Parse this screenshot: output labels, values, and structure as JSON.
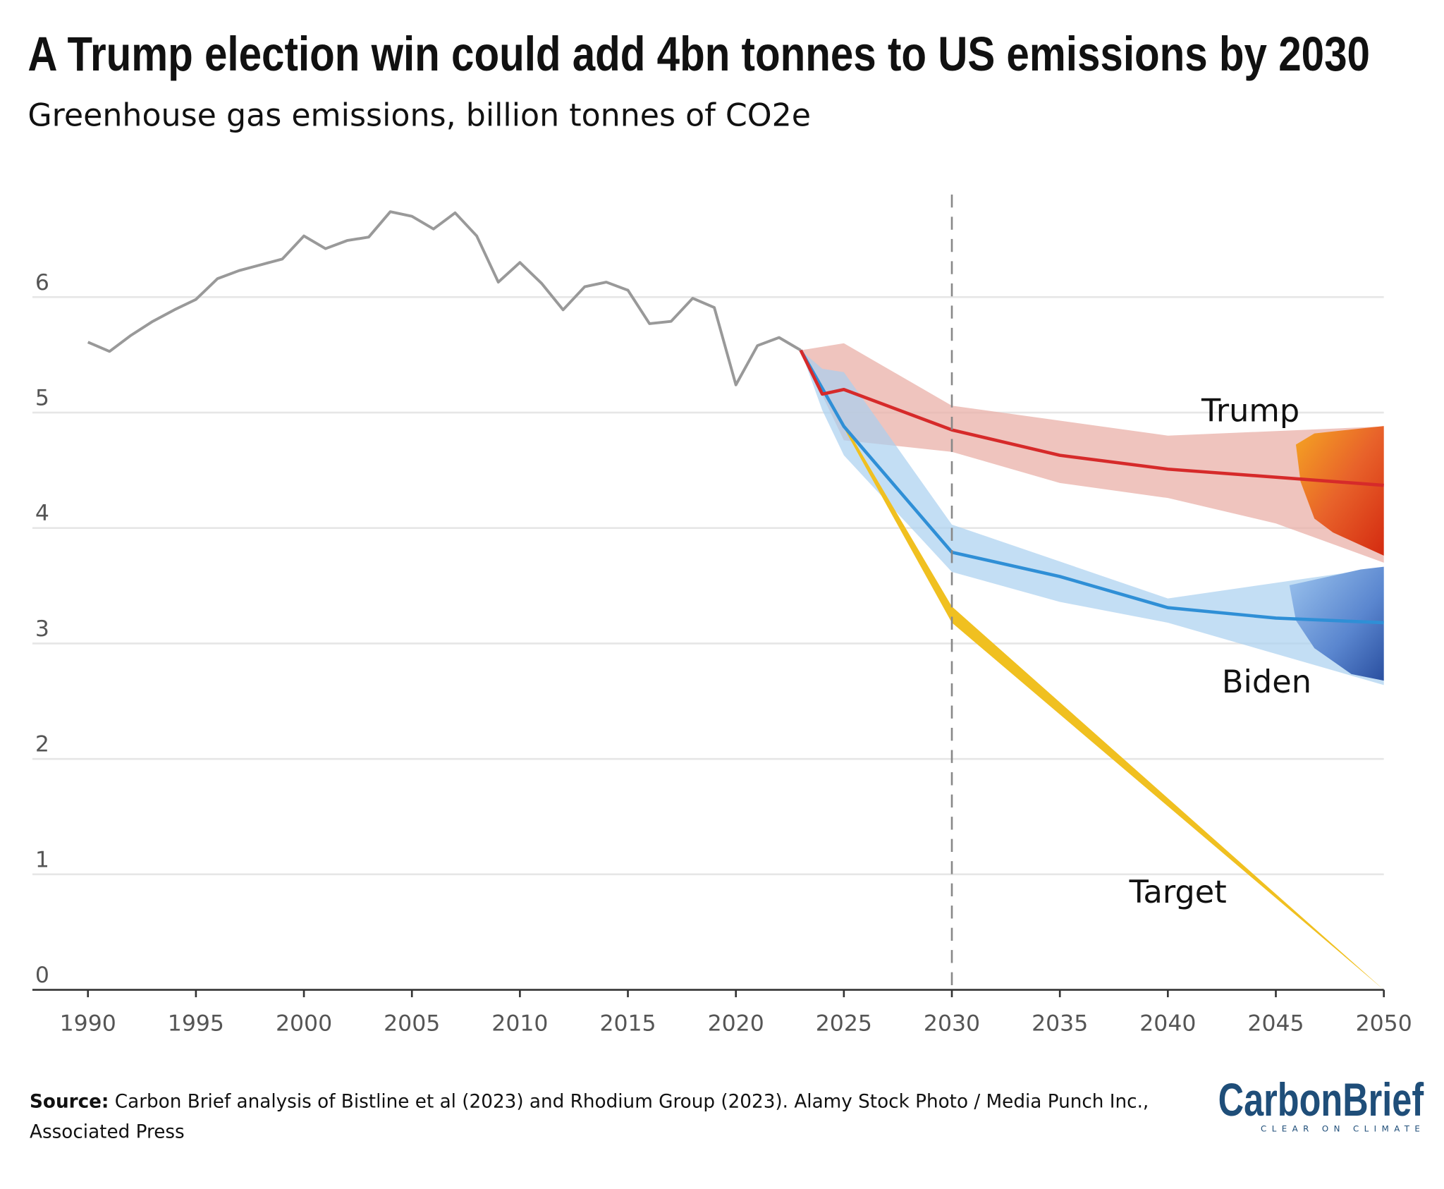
{
  "title": "A Trump election win could add 4bn tonnes to US emissions by 2030",
  "subtitle": "Greenhouse gas emissions, billion tonnes of CO2e",
  "source_label": "Source:",
  "source_text_line1": "Carbon Brief analysis of Bistline et al (2023) and Rhodium Group (2023). Alamy Stock Photo / Media Punch Inc.,",
  "source_text_line2": "Associated Press",
  "logo": {
    "name": "CarbonBrief",
    "tagline": "CLEAR ON CLIMATE"
  },
  "chart_data": {
    "type": "line",
    "title": "A Trump election win could add 4bn tonnes to US emissions by 2030",
    "subtitle": "Greenhouse gas emissions, billion tonnes of CO2e",
    "xlim": [
      1990,
      2050
    ],
    "ylim": [
      0,
      6.9
    ],
    "xticks": [
      1990,
      1995,
      2000,
      2005,
      2010,
      2015,
      2020,
      2025,
      2030,
      2035,
      2040,
      2045,
      2050
    ],
    "yticks": [
      0,
      1,
      2,
      3,
      4,
      5,
      6
    ],
    "grid": "horizontal",
    "reference_line": {
      "x": 2030,
      "style": "dashed"
    },
    "series": [
      {
        "key": "historical",
        "color": "#999999",
        "x": [
          1990,
          1991,
          1992,
          1993,
          1994,
          1995,
          1996,
          1997,
          1998,
          1999,
          2000,
          2001,
          2002,
          2003,
          2004,
          2005,
          2006,
          2007,
          2008,
          2009,
          2010,
          2011,
          2012,
          2013,
          2014,
          2015,
          2016,
          2017,
          2018,
          2019,
          2020,
          2021,
          2022,
          2023
        ],
        "y": [
          5.61,
          5.53,
          5.67,
          5.79,
          5.89,
          5.98,
          6.16,
          6.23,
          6.28,
          6.33,
          6.53,
          6.42,
          6.49,
          6.52,
          6.74,
          6.7,
          6.59,
          6.73,
          6.53,
          6.13,
          6.3,
          6.12,
          5.89,
          6.09,
          6.13,
          6.06,
          5.77,
          5.79,
          5.99,
          5.91,
          5.24,
          5.58,
          5.65,
          5.54
        ]
      },
      {
        "key": "trump",
        "name": "Trump",
        "color": "#d62a2a",
        "band_color": "#eab0a8",
        "x": [
          2023,
          2024,
          2025,
          2030,
          2035,
          2040,
          2050
        ],
        "y": [
          5.54,
          5.16,
          5.2,
          4.85,
          4.63,
          4.51,
          4.37
        ],
        "band_x": [
          2023,
          2025,
          2030,
          2040,
          2050
        ],
        "band_upper": [
          5.54,
          5.6,
          5.06,
          4.8,
          4.88
        ],
        "band_lower_x": [
          2023,
          2025,
          2030,
          2035,
          2040,
          2045,
          2050
        ],
        "band_lower": [
          5.54,
          4.76,
          4.66,
          4.39,
          4.26,
          4.04,
          3.7
        ]
      },
      {
        "key": "biden",
        "name": "Biden",
        "color": "#2f8fd6",
        "band_color": "#a9d0ef",
        "x": [
          2023,
          2025,
          2030,
          2035,
          2040,
          2045,
          2050
        ],
        "y": [
          5.54,
          4.88,
          3.79,
          3.58,
          3.31,
          3.22,
          3.18
        ],
        "band_x": [
          2023,
          2024,
          2025,
          2030,
          2040,
          2050
        ],
        "band_upper": [
          5.54,
          5.38,
          5.35,
          4.03,
          3.39,
          3.66
        ],
        "band_lower_x": [
          2023,
          2024,
          2025,
          2030,
          2035,
          2040,
          2050
        ],
        "band_lower": [
          5.54,
          5.02,
          4.63,
          3.62,
          3.36,
          3.18,
          2.64
        ]
      },
      {
        "key": "target",
        "name": "Target",
        "color": "#f0c020",
        "x": [
          2023,
          2030,
          2050
        ],
        "band_upper": [
          5.54,
          3.32,
          0
        ],
        "band_lower": [
          5.54,
          3.18,
          0
        ]
      }
    ]
  }
}
